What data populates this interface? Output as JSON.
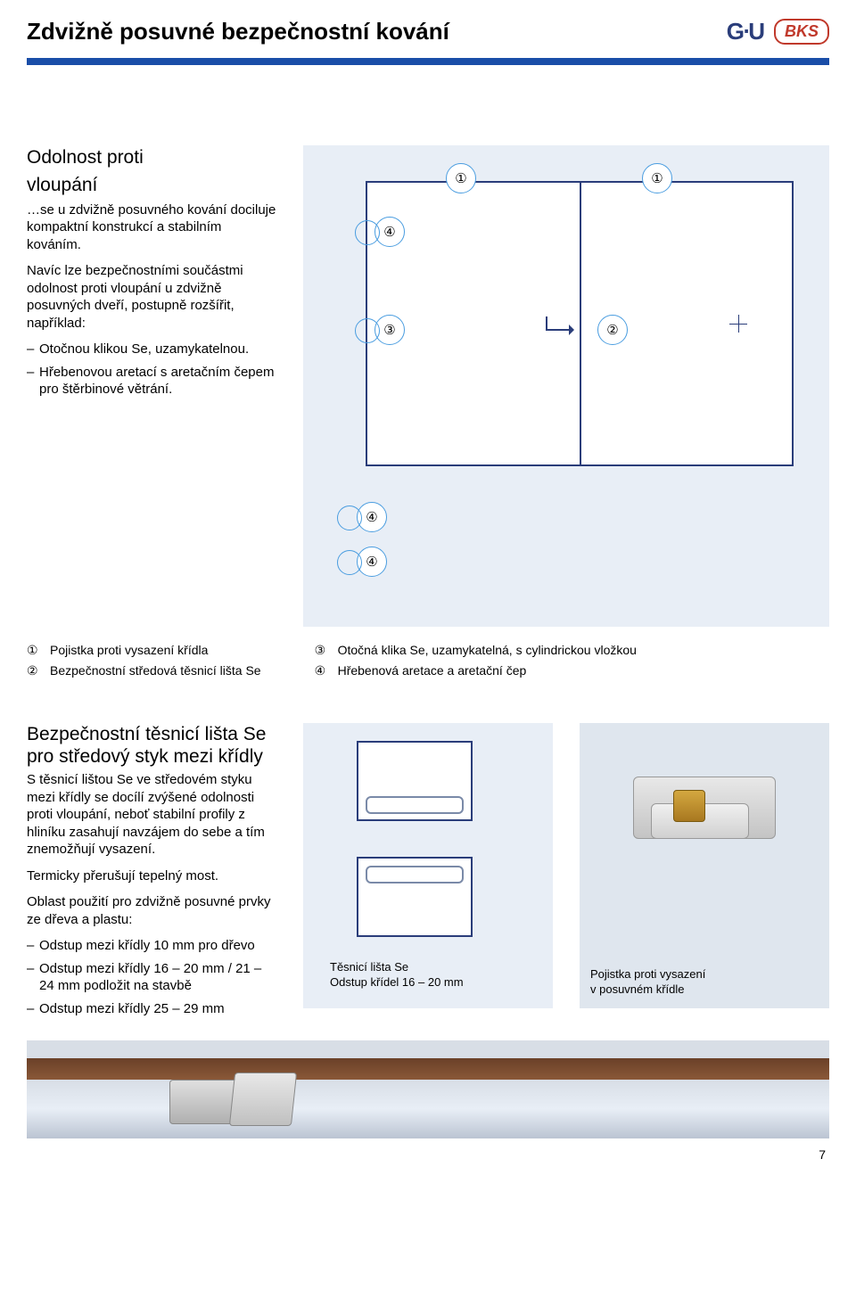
{
  "header": {
    "title": "Zdvižně posuvné bezpečnostní kování",
    "logo_gu": "G⋅U",
    "logo_bks": "BKS"
  },
  "colors": {
    "rule": "#1a4ea8",
    "diagram_bg": "#e8eef6",
    "diagram_line": "#2a3d7a",
    "callout_border": "#4a9de0",
    "wood_dark": "#6a4028",
    "wood_light": "#8a5838",
    "metal_light": "#e8e8e8",
    "metal_dark": "#c0c0c0",
    "brass": "#c89830"
  },
  "section1": {
    "heading_line1": "Odolnost proti",
    "heading_line2": "vloupání",
    "intro": "…se u zdvižně posuvného kování dociluje kompaktní konstrukcí a stabilním kováním.",
    "para": "Navíc lze bezpečnostními součástmi odolnost proti vloupání u zdvižně posuvných dveří, postupně rozšířit, například:",
    "bullets": [
      "Otočnou klikou Se, uzamykatelnou.",
      "Hřebenovou aretací s aretačním čepem pro štěrbinové větrání."
    ],
    "callouts": {
      "c1": "①",
      "c2": "②",
      "c3": "③",
      "c4": "④"
    },
    "legend": [
      {
        "num": "①",
        "text": "Pojistka proti vysazení křídla"
      },
      {
        "num": "②",
        "text": "Bezpečnostní středová těsnicí lišta Se"
      },
      {
        "num": "③",
        "text": "Otočná klika Se, uzamykatelná, s cylindrickou vložkou"
      },
      {
        "num": "④",
        "text": "Hřebenová aretace a aretační čep"
      }
    ]
  },
  "section2": {
    "heading": "Bezpečnostní těsnicí lišta Se pro středový styk mezi křídly",
    "para1": "S těsnicí lištou Se ve středovém styku mezi křídly se docílí zvýšené odolnosti proti vloupání, neboť stabilní profily z hliníku zasahují navzájem do sebe a tím znemožňují vysazení.",
    "para2": "Termicky přerušují tepelný most.",
    "para3": "Oblast použití pro zdvižně posuvné prvky ze dřeva a plastu:",
    "bullets": [
      "Odstup mezi křídly 10 mm pro dřevo",
      "Odstup mezi křídly 16 – 20 mm / 21 – 24 mm podložit na stavbě",
      "Odstup mezi křídly 25 – 29 mm"
    ],
    "mid_caption_line1": "Těsnicí lišta Se",
    "mid_caption_line2": "Odstup křídel 16 – 20 mm",
    "right_caption_line1": "Pojistka proti vysazení",
    "right_caption_line2": "v posuvném křídle"
  },
  "page_number": "7"
}
